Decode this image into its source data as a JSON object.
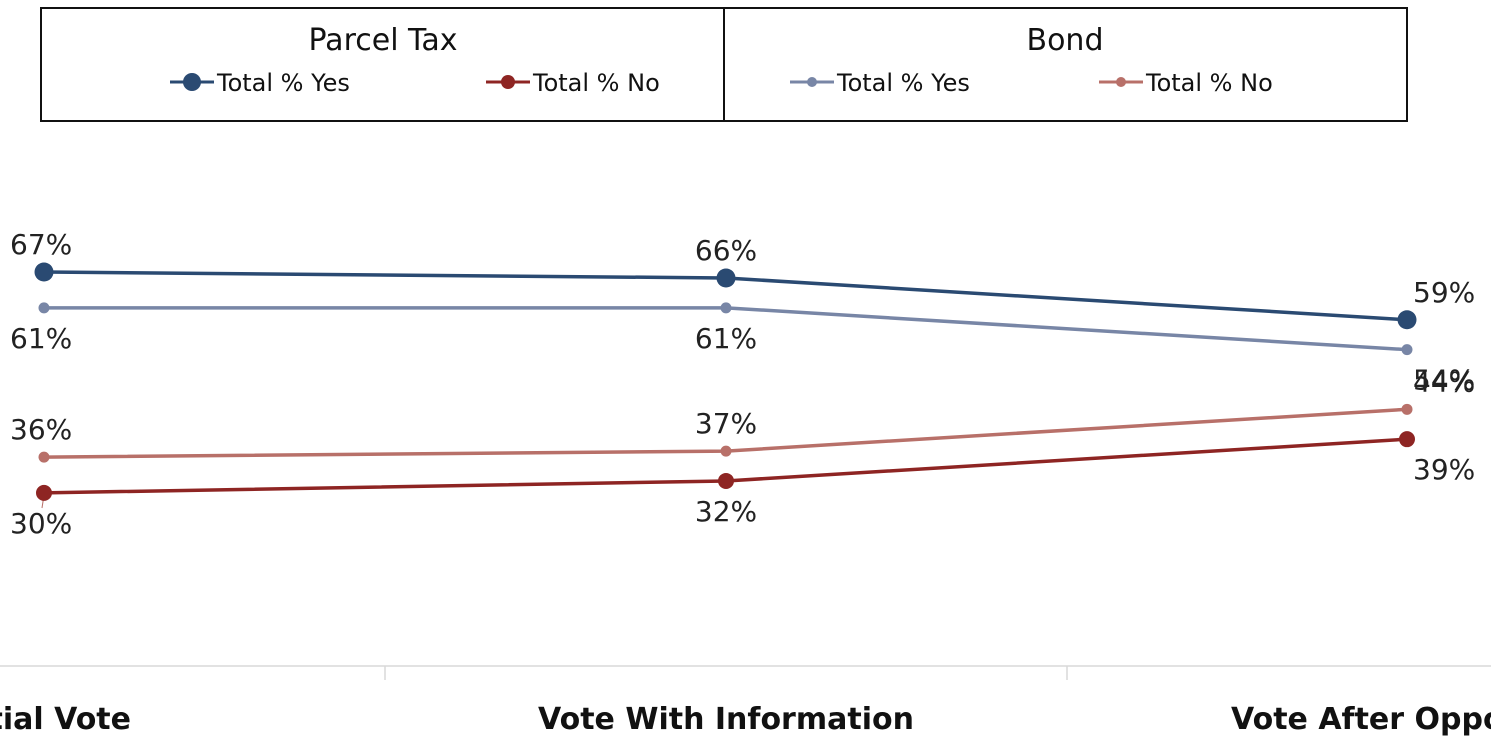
{
  "legend": {
    "groups": [
      {
        "title": "Parcel Tax",
        "entries": [
          {
            "label": "Total  % Yes",
            "series": "parcel_yes"
          },
          {
            "label": "Total % No",
            "series": "parcel_no"
          }
        ]
      },
      {
        "title": "Bond",
        "entries": [
          {
            "label": "Total % Yes",
            "series": "bond_yes"
          },
          {
            "label": "Total %  No",
            "series": "bond_no"
          }
        ]
      }
    ]
  },
  "chart_data": {
    "type": "line",
    "categories": [
      "Initial Vote",
      "Vote With Information",
      "Vote After Opposition"
    ],
    "visible_category_text": [
      "tial Vote",
      "Vote With Information",
      "Vote After Oppo"
    ],
    "ylim": [
      0,
      100
    ],
    "grid": false,
    "series": [
      {
        "key": "parcel_yes",
        "name": "Total  % Yes",
        "group": "Parcel Tax",
        "color": "#2a4a72",
        "values": [
          67,
          66,
          59
        ],
        "labels": [
          "67%",
          "66%",
          "59%"
        ]
      },
      {
        "key": "bond_yes",
        "name": "Total % Yes",
        "group": "Bond",
        "color": "#7886a6",
        "values": [
          61,
          61,
          54
        ],
        "labels": [
          "61%",
          "61%",
          "54%"
        ]
      },
      {
        "key": "bond_no",
        "name": "Total %  No",
        "group": "Bond",
        "color": "#b87069",
        "values": [
          36,
          37,
          44
        ],
        "labels": [
          "36%",
          "37%",
          "44%"
        ]
      },
      {
        "key": "parcel_no",
        "name": "Total % No",
        "group": "Parcel Tax",
        "color": "#8e2523",
        "values": [
          30,
          32,
          39
        ],
        "labels": [
          "30%",
          "32%",
          "39%"
        ]
      }
    ]
  }
}
